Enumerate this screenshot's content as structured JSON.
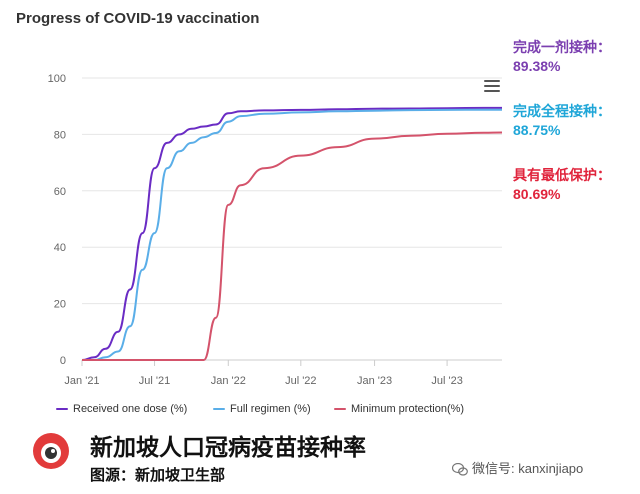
{
  "chart_data": {
    "type": "line",
    "title": "Progress of COVID-19 vaccination",
    "xlabel": "",
    "ylabel": "",
    "ylim": [
      0,
      100
    ],
    "y_ticks": [
      "0",
      "20",
      "40",
      "60",
      "80",
      "100"
    ],
    "x_ticks": [
      "Jan '21",
      "Jul '21",
      "Jan '22",
      "Jul '22",
      "Jan '23",
      "Jul '23"
    ],
    "x": [
      "2021-01-01",
      "2021-02-01",
      "2021-03-01",
      "2021-04-01",
      "2021-05-01",
      "2021-06-01",
      "2021-07-01",
      "2021-08-01",
      "2021-09-01",
      "2021-10-01",
      "2021-11-01",
      "2021-12-01",
      "2022-01-01",
      "2022-02-01",
      "2022-04-01",
      "2022-07-01",
      "2022-10-01",
      "2023-01-01",
      "2023-04-01",
      "2023-07-01",
      "2023-10-01",
      "2023-11-15"
    ],
    "series": [
      {
        "name": "Received one dose (%)",
        "color": "#6a2cc4",
        "values": [
          0,
          1,
          4,
          10,
          25,
          45,
          68,
          77,
          80,
          82,
          82.8,
          83.5,
          87.5,
          88.2,
          88.5,
          88.7,
          88.9,
          89.1,
          89.2,
          89.3,
          89.38,
          89.38
        ]
      },
      {
        "name": "Full regimen (%)",
        "color": "#5aaee8",
        "values": [
          0,
          0,
          1,
          3,
          12,
          32,
          45,
          68,
          74,
          77,
          79,
          80.5,
          84.5,
          86.5,
          87.3,
          87.8,
          88.2,
          88.4,
          88.6,
          88.7,
          88.75,
          88.75
        ]
      },
      {
        "name": "Minimum protection(%)",
        "color": "#d4536b",
        "values": [
          0,
          0,
          0,
          0,
          0,
          0,
          0,
          0,
          0,
          0,
          0,
          15,
          55,
          62,
          68,
          72.5,
          75.5,
          78.5,
          79.5,
          80.2,
          80.6,
          80.69
        ]
      }
    ],
    "legend_position": "bottom",
    "grid": true
  },
  "annotations": [
    {
      "label": "完成一剂接种：",
      "value": "89.38%",
      "color": "#7b3fb0"
    },
    {
      "label": "完成全程接种：",
      "value": "88.75%",
      "color": "#1fa6d8"
    },
    {
      "label": "具有最低保护：",
      "value": "80.69%",
      "color": "#e0243c"
    }
  ],
  "icons": {
    "menu": "hamburger-menu-icon",
    "logo": "kanxinjiapo-logo-icon",
    "wechat": "wechat-icon"
  },
  "footer": {
    "headline": "新加坡人口冠病疫苗接种率",
    "source": "图源：新加坡卫生部",
    "wechat": "微信号: kanxinjiapo"
  }
}
